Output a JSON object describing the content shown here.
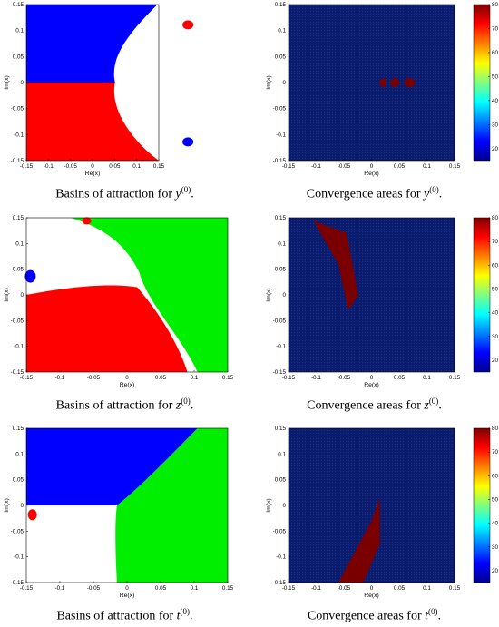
{
  "colors": {
    "blue": "#0000ff",
    "red": "#ff0000",
    "green": "#00ee00",
    "heat_bg": "#0b1b6e",
    "heat_dark": "#7a0000"
  },
  "tick_labels": {
    "x": [
      "-0.15",
      "-0.1",
      "-0.05",
      "0",
      "0.05",
      "0.1",
      "0.15"
    ],
    "y": [
      "0.15",
      "0.1",
      "0.05",
      "0",
      "-0.05",
      "-0.1",
      "-0.15"
    ],
    "colorbar": [
      "80",
      "70",
      "60",
      "50",
      "40",
      "30",
      "20"
    ]
  },
  "chart_data": [
    {
      "type": "heatmap",
      "panel": "basins-y",
      "xlabel": "Re(x)",
      "ylabel": "Im(x)",
      "xlim": [
        -0.15,
        0.15
      ],
      "ylim": [
        -0.15,
        0.15
      ],
      "caption": {
        "pre": "Basins of attraction for ",
        "var": "y",
        "sup": "(0)",
        "post": "."
      }
    },
    {
      "type": "heatmap",
      "panel": "convergence-y",
      "xlabel": "Re(x)",
      "ylabel": "Im(x)",
      "xlim": [
        -0.15,
        0.15
      ],
      "ylim": [
        -0.15,
        0.15
      ],
      "colorbar_range": [
        15,
        80
      ],
      "caption": {
        "pre": "Convergence areas for ",
        "var": "y",
        "sup": "(0)",
        "post": "."
      }
    },
    {
      "type": "heatmap",
      "panel": "basins-z",
      "xlabel": "Re(x)",
      "ylabel": "Im(x)",
      "xlim": [
        -0.15,
        0.15
      ],
      "ylim": [
        -0.15,
        0.15
      ],
      "caption": {
        "pre": "Basins of attraction for ",
        "var": "z",
        "sup": "(0)",
        "post": "."
      }
    },
    {
      "type": "heatmap",
      "panel": "convergence-z",
      "xlabel": "Re(x)",
      "ylabel": "Im(x)",
      "xlim": [
        -0.15,
        0.15
      ],
      "ylim": [
        -0.15,
        0.15
      ],
      "colorbar_range": [
        15,
        80
      ],
      "caption": {
        "pre": "Convergence areas for ",
        "var": "z",
        "sup": "(0)",
        "post": "."
      }
    },
    {
      "type": "heatmap",
      "panel": "basins-t",
      "xlabel": "Re(x)",
      "ylabel": "Im(x)",
      "xlim": [
        -0.15,
        0.15
      ],
      "ylim": [
        -0.15,
        0.15
      ],
      "caption": {
        "pre": "Basins of attraction for ",
        "var": "t",
        "sup": "(0)",
        "post": "."
      }
    },
    {
      "type": "heatmap",
      "panel": "convergence-t",
      "xlabel": "Re(x)",
      "ylabel": "Im(x)",
      "xlim": [
        -0.15,
        0.15
      ],
      "ylim": [
        -0.15,
        0.15
      ],
      "colorbar_range": [
        15,
        80
      ],
      "caption": {
        "pre": "Convergence areas for ",
        "var": "t",
        "sup": "(0)",
        "post": "."
      }
    }
  ]
}
